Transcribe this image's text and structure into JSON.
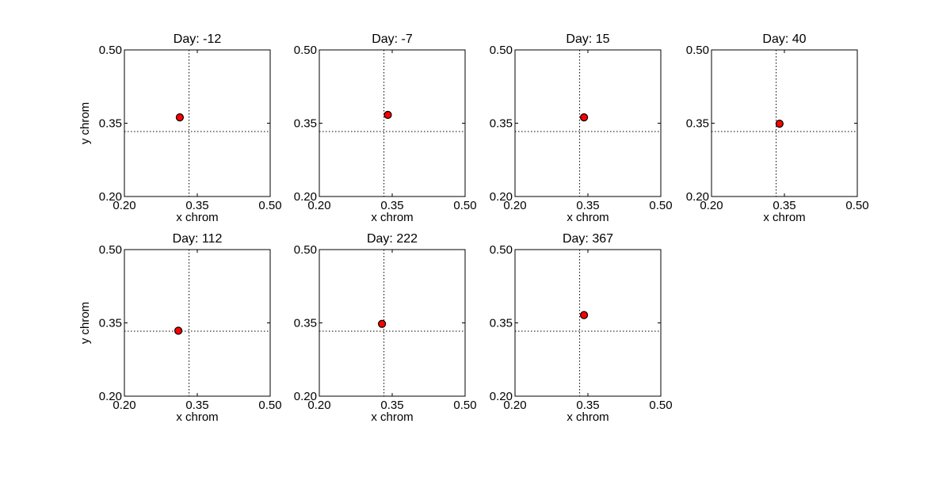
{
  "chart_data": [
    {
      "type": "scatter",
      "title": "Day: -12",
      "xlabel": "x chrom",
      "ylabel": "y chrom",
      "xlim": [
        0.2,
        0.5
      ],
      "ylim": [
        0.2,
        0.5
      ],
      "xticks": [
        "0.20",
        "0.35",
        "0.50"
      ],
      "yticks": [
        "0.50",
        "0.35",
        "0.20"
      ],
      "ref_x": 0.333,
      "ref_y": 0.333,
      "points": [
        {
          "x": 0.314,
          "y": 0.362
        }
      ]
    },
    {
      "type": "scatter",
      "title": "Day: -7",
      "xlabel": "x chrom",
      "ylabel": "",
      "xlim": [
        0.2,
        0.5
      ],
      "ylim": [
        0.2,
        0.5
      ],
      "xticks": [
        "0.20",
        "0.35",
        "0.50"
      ],
      "yticks": [
        "0.50",
        "0.35",
        "0.20"
      ],
      "ref_x": 0.333,
      "ref_y": 0.333,
      "points": [
        {
          "x": 0.341,
          "y": 0.367
        }
      ]
    },
    {
      "type": "scatter",
      "title": "Day: 15",
      "xlabel": "x chrom",
      "ylabel": "",
      "xlim": [
        0.2,
        0.5
      ],
      "ylim": [
        0.2,
        0.5
      ],
      "xticks": [
        "0.20",
        "0.35",
        "0.50"
      ],
      "yticks": [
        "0.50",
        "0.35",
        "0.20"
      ],
      "ref_x": 0.333,
      "ref_y": 0.333,
      "points": [
        {
          "x": 0.342,
          "y": 0.362
        }
      ]
    },
    {
      "type": "scatter",
      "title": "Day: 40",
      "xlabel": "x chrom",
      "ylabel": "",
      "xlim": [
        0.2,
        0.5
      ],
      "ylim": [
        0.2,
        0.5
      ],
      "xticks": [
        "0.20",
        "0.35",
        "0.50"
      ],
      "yticks": [
        "0.50",
        "0.35",
        "0.20"
      ],
      "ref_x": 0.333,
      "ref_y": 0.333,
      "points": [
        {
          "x": 0.34,
          "y": 0.349
        }
      ]
    },
    {
      "type": "scatter",
      "title": "Day: 112",
      "xlabel": "x chrom",
      "ylabel": "y chrom",
      "xlim": [
        0.2,
        0.5
      ],
      "ylim": [
        0.2,
        0.5
      ],
      "xticks": [
        "0.20",
        "0.35",
        "0.50"
      ],
      "yticks": [
        "0.50",
        "0.35",
        "0.20"
      ],
      "ref_x": 0.333,
      "ref_y": 0.333,
      "points": [
        {
          "x": 0.311,
          "y": 0.334
        }
      ]
    },
    {
      "type": "scatter",
      "title": "Day: 222",
      "xlabel": "x chrom",
      "ylabel": "",
      "xlim": [
        0.2,
        0.5
      ],
      "ylim": [
        0.2,
        0.5
      ],
      "xticks": [
        "0.20",
        "0.35",
        "0.50"
      ],
      "yticks": [
        "0.50",
        "0.35",
        "0.20"
      ],
      "ref_x": 0.333,
      "ref_y": 0.333,
      "points": [
        {
          "x": 0.329,
          "y": 0.348
        }
      ]
    },
    {
      "type": "scatter",
      "title": "Day: 367",
      "xlabel": "x chrom",
      "ylabel": "",
      "xlim": [
        0.2,
        0.5
      ],
      "ylim": [
        0.2,
        0.5
      ],
      "xticks": [
        "0.20",
        "0.35",
        "0.50"
      ],
      "yticks": [
        "0.50",
        "0.35",
        "0.20"
      ],
      "ref_x": 0.333,
      "ref_y": 0.333,
      "points": [
        {
          "x": 0.342,
          "y": 0.366
        }
      ]
    }
  ],
  "colors": {
    "point_fill": "#ff0000",
    "point_edge": "#000000",
    "frame": "#000000"
  }
}
